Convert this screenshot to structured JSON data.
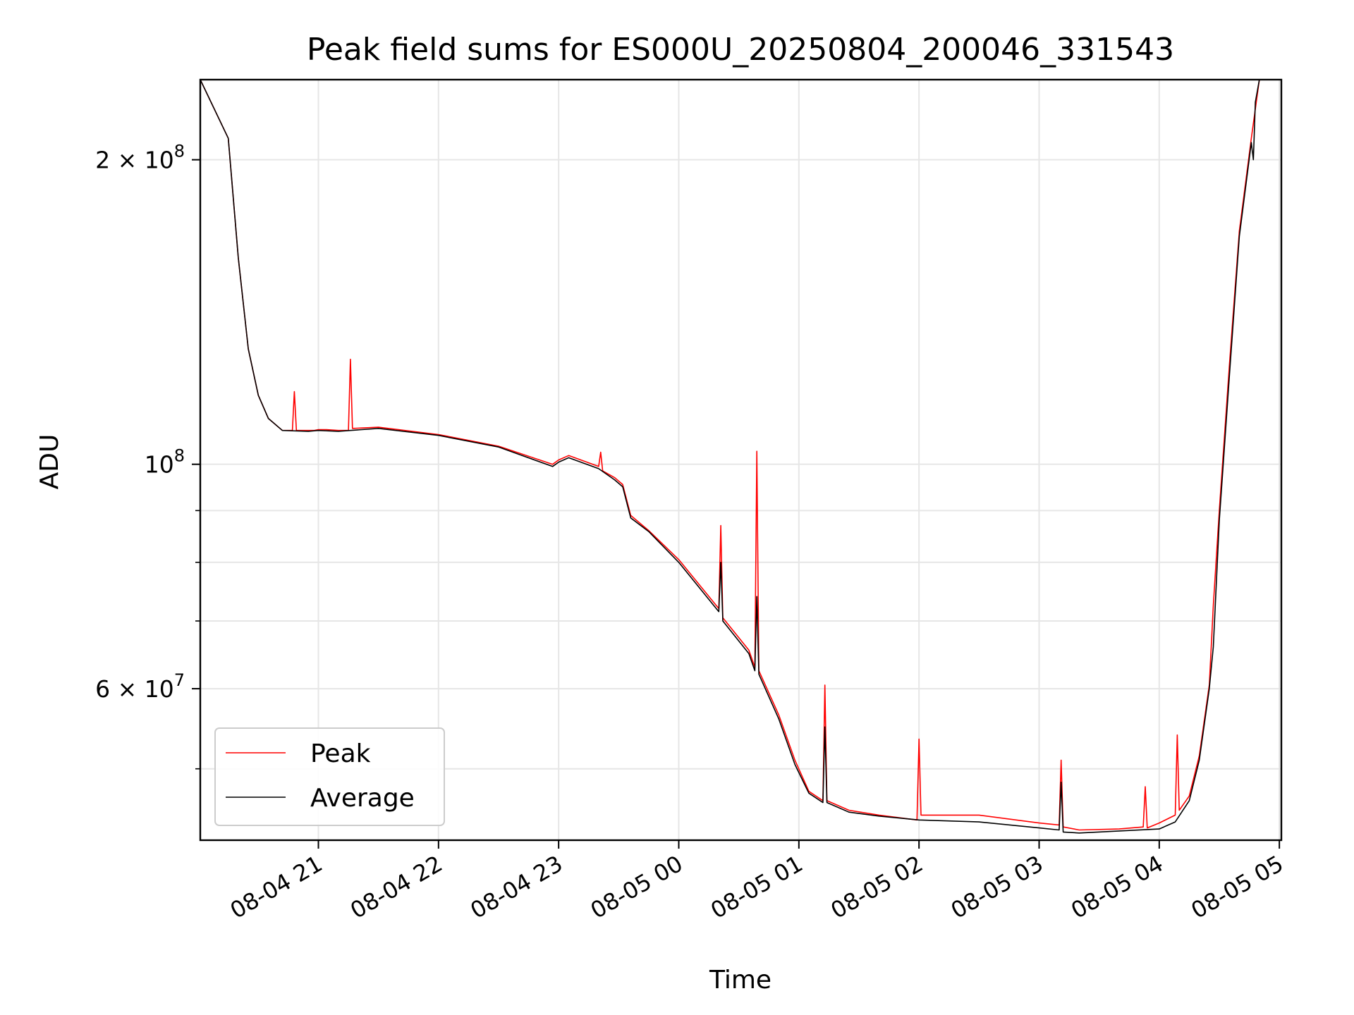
{
  "chart_data": {
    "type": "line",
    "title": "Peak field sums for ES000U_20250804_200046_331543",
    "xlabel": "Time",
    "ylabel": "ADU",
    "yscale": "log",
    "grid": true,
    "legend_position": "lower-left",
    "xlim": [
      "2025-08-04 20:01",
      "2025-08-05 05:01"
    ],
    "ylim": [
      42500000,
      240000000
    ],
    "xticks": [
      {
        "value": "2025-08-04 21:00",
        "label": "08-04 21"
      },
      {
        "value": "2025-08-04 22:00",
        "label": "08-04 22"
      },
      {
        "value": "2025-08-04 23:00",
        "label": "08-04 23"
      },
      {
        "value": "2025-08-05 00:00",
        "label": "08-05 00"
      },
      {
        "value": "2025-08-05 01:00",
        "label": "08-05 01"
      },
      {
        "value": "2025-08-05 02:00",
        "label": "08-05 02"
      },
      {
        "value": "2025-08-05 03:00",
        "label": "08-05 03"
      },
      {
        "value": "2025-08-05 04:00",
        "label": "08-05 04"
      },
      {
        "value": "2025-08-05 05:00",
        "label": "08-05 05"
      }
    ],
    "yticks_major": [
      {
        "value": 60000000,
        "base": "6",
        "exp": "7"
      },
      {
        "value": 100000000,
        "base": "",
        "exp": "8"
      },
      {
        "value": 200000000,
        "base": "2",
        "exp": "8"
      }
    ],
    "yticks_minor": [
      50000000,
      70000000,
      80000000,
      90000000
    ],
    "series": [
      {
        "name": "Peak",
        "color": "#ff0000",
        "x": [
          "2025-08-04 20:01",
          "2025-08-04 20:15",
          "2025-08-04 20:20",
          "2025-08-04 20:25",
          "2025-08-04 20:30",
          "2025-08-04 20:35",
          "2025-08-04 20:42",
          "2025-08-04 20:47",
          "2025-08-04 20:48",
          "2025-08-04 20:49",
          "2025-08-04 20:55",
          "2025-08-04 20:58",
          "2025-08-04 21:00",
          "2025-08-04 21:04",
          "2025-08-04 21:10",
          "2025-08-04 21:15",
          "2025-08-04 21:16",
          "2025-08-04 21:17",
          "2025-08-04 21:30",
          "2025-08-04 22:00",
          "2025-08-04 22:30",
          "2025-08-04 22:57",
          "2025-08-04 23:00",
          "2025-08-04 23:05",
          "2025-08-04 23:20",
          "2025-08-04 23:21",
          "2025-08-04 23:22",
          "2025-08-04 23:28",
          "2025-08-04 23:32",
          "2025-08-04 23:36",
          "2025-08-04 23:45",
          "2025-08-05 00:00",
          "2025-08-05 00:20",
          "2025-08-05 00:21",
          "2025-08-05 00:22",
          "2025-08-05 00:35",
          "2025-08-05 00:38",
          "2025-08-05 00:39",
          "2025-08-05 00:40",
          "2025-08-05 00:50",
          "2025-08-05 00:58",
          "2025-08-05 01:05",
          "2025-08-05 01:12",
          "2025-08-05 01:13",
          "2025-08-05 01:14",
          "2025-08-05 01:25",
          "2025-08-05 01:40",
          "2025-08-05 01:59",
          "2025-08-05 02:00",
          "2025-08-05 02:01",
          "2025-08-05 02:30",
          "2025-08-05 03:00",
          "2025-08-05 03:10",
          "2025-08-05 03:11",
          "2025-08-05 03:12",
          "2025-08-05 03:20",
          "2025-08-05 03:40",
          "2025-08-05 03:52",
          "2025-08-05 03:53",
          "2025-08-05 03:54",
          "2025-08-05 04:00",
          "2025-08-05 04:08",
          "2025-08-05 04:09",
          "2025-08-05 04:10",
          "2025-08-05 04:15",
          "2025-08-05 04:20",
          "2025-08-05 04:25",
          "2025-08-05 04:27",
          "2025-08-05 04:30",
          "2025-08-05 04:35",
          "2025-08-05 04:40",
          "2025-08-05 04:46",
          "2025-08-05 04:50",
          "2025-08-05 04:55",
          "2025-08-05 05:00"
        ],
        "y": [
          240000000,
          210000000,
          160000000,
          130000000,
          117000000,
          111000000,
          108000000,
          108000000,
          118000000,
          108000000,
          108000000,
          108000000,
          108200000,
          108200000,
          108000000,
          108000000,
          127000000,
          108500000,
          108800000,
          107000000,
          104200000,
          100000000,
          101000000,
          102000000,
          99500000,
          102800000,
          98500000,
          97000000,
          95500000,
          89000000,
          86000000,
          80500000,
          72000000,
          87000000,
          70500000,
          65500000,
          63000000,
          103000000,
          62500000,
          56500000,
          51000000,
          47500000,
          46500000,
          60500000,
          46500000,
          45500000,
          45000000,
          44500000,
          53500000,
          45000000,
          45000000,
          44200000,
          44000000,
          51000000,
          43800000,
          43500000,
          43600000,
          43800000,
          48000000,
          43700000,
          44200000,
          45000000,
          54000000,
          45500000,
          47000000,
          51500000,
          60500000,
          72500000,
          90000000,
          125000000,
          170000000,
          210000000,
          240000000,
          240000000,
          240000000
        ]
      },
      {
        "name": "Average",
        "color": "#000000",
        "x": [
          "2025-08-04 20:01",
          "2025-08-04 20:15",
          "2025-08-04 20:20",
          "2025-08-04 20:25",
          "2025-08-04 20:30",
          "2025-08-04 20:35",
          "2025-08-04 20:42",
          "2025-08-04 20:55",
          "2025-08-04 21:00",
          "2025-08-04 21:10",
          "2025-08-04 21:30",
          "2025-08-04 22:00",
          "2025-08-04 22:30",
          "2025-08-04 22:57",
          "2025-08-04 23:00",
          "2025-08-04 23:05",
          "2025-08-04 23:20",
          "2025-08-04 23:28",
          "2025-08-04 23:32",
          "2025-08-04 23:36",
          "2025-08-04 23:45",
          "2025-08-05 00:00",
          "2025-08-05 00:20",
          "2025-08-05 00:21",
          "2025-08-05 00:22",
          "2025-08-05 00:35",
          "2025-08-05 00:38",
          "2025-08-05 00:39",
          "2025-08-05 00:40",
          "2025-08-05 00:50",
          "2025-08-05 00:58",
          "2025-08-05 01:05",
          "2025-08-05 01:12",
          "2025-08-05 01:13",
          "2025-08-05 01:14",
          "2025-08-05 01:25",
          "2025-08-05 01:40",
          "2025-08-05 02:00",
          "2025-08-05 02:30",
          "2025-08-05 03:00",
          "2025-08-05 03:10",
          "2025-08-05 03:11",
          "2025-08-05 03:12",
          "2025-08-05 03:20",
          "2025-08-05 03:40",
          "2025-08-05 04:00",
          "2025-08-05 04:08",
          "2025-08-05 04:15",
          "2025-08-05 04:20",
          "2025-08-05 04:25",
          "2025-08-05 04:27",
          "2025-08-05 04:30",
          "2025-08-05 04:35",
          "2025-08-05 04:40",
          "2025-08-05 04:46",
          "2025-08-05 04:47",
          "2025-08-05 04:48",
          "2025-08-05 04:50",
          "2025-08-05 04:55",
          "2025-08-05 05:00"
        ],
        "y": [
          240000000,
          210000000,
          160000000,
          130000000,
          117000000,
          111000000,
          108000000,
          107800000,
          108000000,
          107800000,
          108500000,
          106800000,
          104000000,
          99500000,
          100500000,
          101500000,
          99000000,
          96500000,
          95000000,
          88500000,
          85800000,
          80000000,
          71500000,
          80000000,
          70000000,
          65000000,
          62500000,
          74000000,
          62000000,
          56000000,
          50500000,
          47300000,
          46300000,
          55000000,
          46300000,
          45300000,
          44900000,
          44500000,
          44300000,
          43700000,
          43500000,
          48500000,
          43300000,
          43200000,
          43400000,
          43600000,
          44300000,
          46500000,
          51000000,
          60000000,
          66000000,
          88000000,
          122000000,
          168000000,
          208000000,
          200000000,
          228000000,
          240000000,
          240000000,
          240000000
        ]
      }
    ]
  }
}
